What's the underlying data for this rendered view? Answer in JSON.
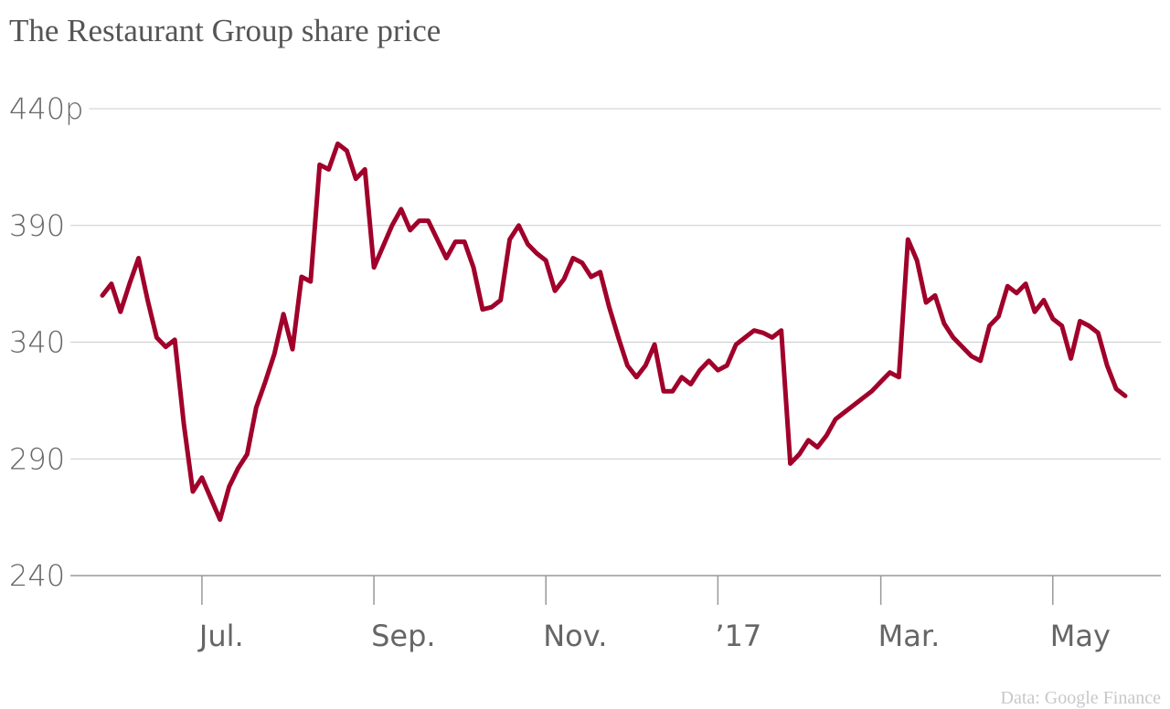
{
  "chart_data": {
    "type": "line",
    "title": "The Restaurant Group share price",
    "source": "Data: Google Finance",
    "color": "#a0002a",
    "grid": true,
    "ylim": [
      240,
      440
    ],
    "yticks": [
      240,
      290,
      340,
      390,
      {
        "value": 440,
        "label": "440p"
      }
    ],
    "categories": [
      null,
      null,
      null,
      null,
      null,
      null,
      null,
      null,
      null,
      null,
      null,
      "Jul.",
      null,
      null,
      null,
      null,
      null,
      null,
      null,
      null,
      null,
      null,
      null,
      null,
      null,
      null,
      null,
      null,
      null,
      null,
      "Sep.",
      null,
      null,
      null,
      null,
      null,
      null,
      null,
      null,
      null,
      null,
      null,
      null,
      null,
      null,
      null,
      null,
      null,
      null,
      "Nov.",
      null,
      null,
      null,
      null,
      null,
      null,
      null,
      null,
      null,
      null,
      null,
      null,
      null,
      null,
      null,
      null,
      null,
      null,
      "’17",
      null,
      null,
      null,
      null,
      null,
      null,
      null,
      null,
      null,
      null,
      null,
      null,
      null,
      null,
      null,
      null,
      null,
      "Mar.",
      null,
      null,
      null,
      null,
      null,
      null,
      null,
      null,
      null,
      null,
      null,
      null,
      null,
      null,
      null,
      null,
      null,
      null,
      "May",
      null,
      null,
      null,
      null,
      null,
      null,
      null,
      null
    ],
    "values": [
      360,
      365,
      353,
      365,
      376,
      358,
      342,
      338,
      341,
      305,
      276,
      282,
      273,
      264,
      278,
      286,
      292,
      312,
      323,
      335,
      352,
      337,
      368,
      366,
      416,
      414,
      425,
      422,
      410,
      414,
      372,
      381,
      390,
      397,
      388,
      392,
      392,
      384,
      376,
      383,
      383,
      372,
      354,
      355,
      358,
      384,
      390,
      382,
      378,
      375,
      362,
      367,
      376,
      374,
      368,
      370,
      355,
      342,
      330,
      325,
      330,
      339,
      319,
      319,
      325,
      322,
      328,
      332,
      328,
      330,
      339,
      342,
      345,
      344,
      342,
      345,
      288,
      292,
      298,
      295,
      300,
      307,
      310,
      313,
      316,
      319,
      323,
      327,
      325,
      384,
      375,
      357,
      360,
      348,
      342,
      338,
      334,
      332,
      347,
      351,
      364,
      361,
      365,
      353,
      358,
      350,
      347,
      333,
      349,
      347,
      344,
      330,
      320,
      317
    ]
  }
}
